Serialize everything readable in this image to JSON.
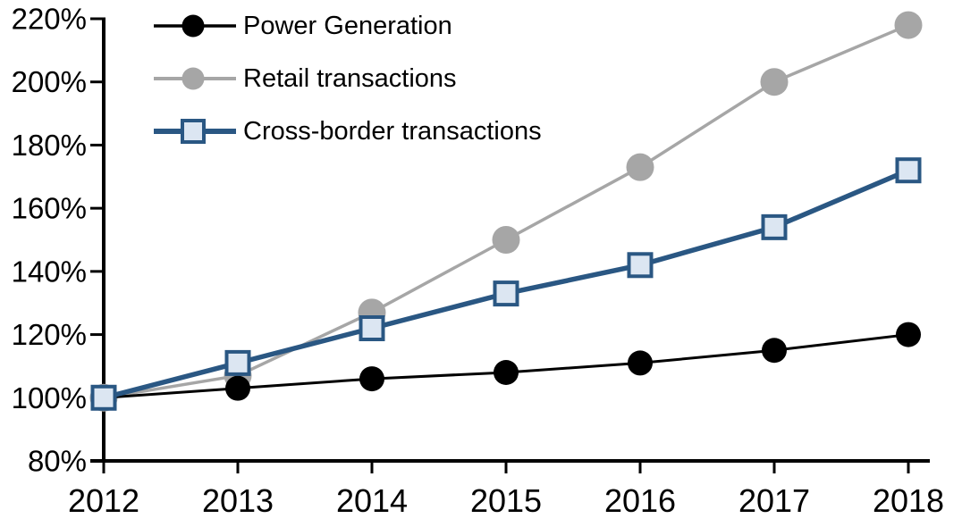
{
  "page": {
    "background": "#ffffff"
  },
  "chart_data": {
    "type": "line",
    "title": "",
    "xlabel": "",
    "ylabel": "",
    "x_labels": [
      "2012",
      "2013",
      "2014",
      "2015",
      "2016",
      "2017",
      "2018"
    ],
    "ytick_labels": [
      "80%",
      "100%",
      "120%",
      "140%",
      "160%",
      "180%",
      "200%",
      "220%"
    ],
    "ylim": [
      80,
      220
    ],
    "ytick_step": 20,
    "grid": false,
    "legend_position": "top-left",
    "axis_color": "#000000",
    "series": [
      {
        "name": "Power Generation",
        "color": "#000000",
        "marker": "circle",
        "marker_fill": "#000000",
        "values": [
          100,
          103,
          106,
          108,
          111,
          115,
          120
        ]
      },
      {
        "name": "Retail transactions",
        "color": "#a6a6a6",
        "marker": "circle",
        "marker_fill": "#a6a6a6",
        "values": [
          100,
          107,
          127,
          150,
          173,
          200,
          218
        ]
      },
      {
        "name": "Cross-border transactions",
        "color": "#2a5783",
        "marker": "square",
        "marker_fill": "#dce6f2",
        "values": [
          100,
          111,
          122,
          133,
          142,
          154,
          172
        ]
      }
    ]
  }
}
